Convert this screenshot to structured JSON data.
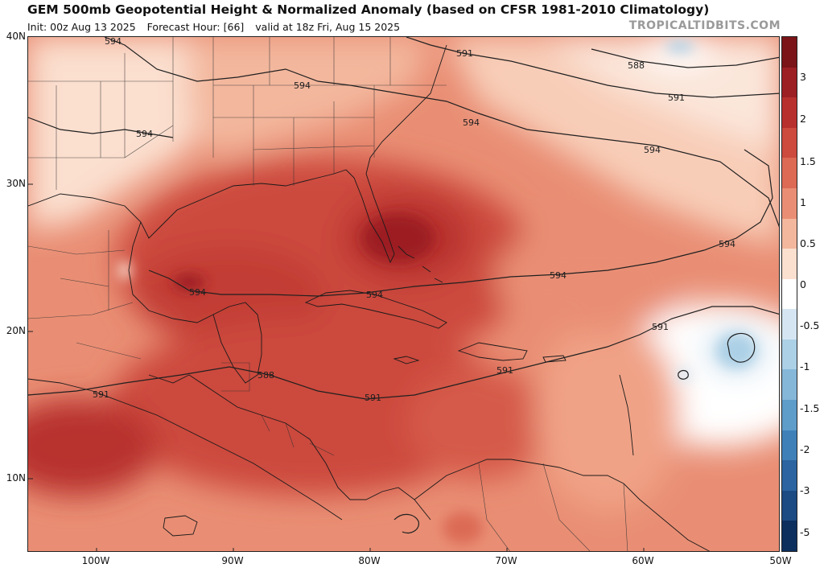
{
  "header": {
    "title": "GEM 500mb Geopotential Height & Normalized Anomaly (based on CFSR 1981-2010 Climatology)",
    "init": "Init: 00z Aug 13 2025",
    "forecast_hour": "Forecast Hour: [66]",
    "valid": "valid at 18z Fri, Aug 15 2025",
    "brand": "TROPICALTIDBITS.COM"
  },
  "axes": {
    "lat_labels": [
      "40N",
      "30N",
      "20N",
      "10N"
    ],
    "lon_labels": [
      "100W",
      "90W",
      "80W",
      "70W",
      "60W",
      "50W"
    ]
  },
  "colorbar": {
    "labels": [
      "3",
      "2",
      "1.5",
      "1",
      "0.5",
      "0",
      "-0.5",
      "-1",
      "-1.5",
      "-2",
      "-3",
      "-5"
    ],
    "colors": [
      "#7a1418",
      "#9c1f24",
      "#b8302d",
      "#cc4a3e",
      "#dc6a55",
      "#e98e74",
      "#f3b79d",
      "#fbdfcf",
      "#ffffff",
      "#d5e6f2",
      "#acd0e6",
      "#85b7d9",
      "#5e9cc9",
      "#3f80b9",
      "#2b64a0",
      "#1c4a82",
      "#0d2f5e"
    ]
  },
  "contours": {
    "labels": [
      "594",
      "594",
      "594",
      "594",
      "594",
      "594",
      "594",
      "594",
      "594",
      "591",
      "591",
      "591",
      "591",
      "591",
      "591",
      "588",
      "588"
    ]
  }
}
